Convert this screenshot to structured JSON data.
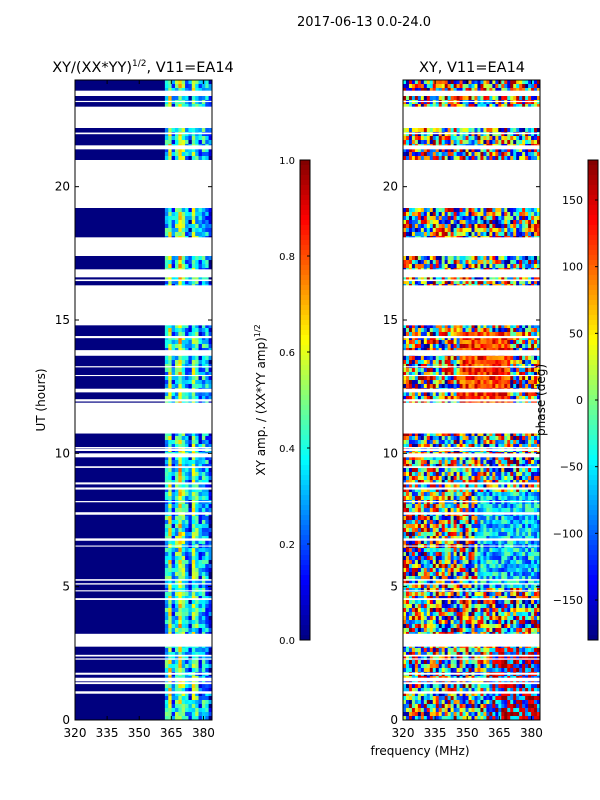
{
  "figure": {
    "suptitle": "2017-06-13 0.0-24.0"
  },
  "colors": {
    "jet": [
      "#00007f",
      "#0000ff",
      "#007fff",
      "#00ffff",
      "#7fff7f",
      "#ffff00",
      "#ff7f00",
      "#ff0000",
      "#7f0000"
    ],
    "amp_background": "#00007f",
    "gap": "#ffffff"
  },
  "chart_data": [
    {
      "type": "heatmap",
      "id": "amp",
      "title_main": "XY/(XX*YY)",
      "title_exp": "1/2",
      "title_suffix": ", V11=EA14",
      "ylabel": "UT (hours)",
      "xlabel": "",
      "xlim": [
        320,
        384
      ],
      "ylim": [
        0,
        24
      ],
      "xticks": [
        "320",
        "335",
        "350",
        "365",
        "380"
      ],
      "xtick_values": [
        320,
        335,
        350,
        365,
        380
      ],
      "yticks": [
        "0",
        "5",
        "10",
        "15",
        "20"
      ],
      "ytick_values": [
        0,
        5,
        10,
        15,
        20
      ],
      "data_gaps_ut": [
        [
          2.75,
          3.2
        ],
        [
          9.85,
          10.0
        ],
        [
          10.8,
          11.9
        ],
        [
          14.8,
          16.3
        ],
        [
          16.6,
          16.9
        ],
        [
          17.4,
          18.1
        ],
        [
          19.2,
          21.0
        ],
        [
          21.4,
          21.55
        ],
        [
          22.2,
          23.0
        ],
        [
          23.4,
          23.6
        ]
      ],
      "band_freq_mhz": [
        362,
        384
      ],
      "colorbar": {
        "label_main": "XY amp. / (XX*YY amp)",
        "label_exp": "1/2",
        "ticks": [
          "0.0",
          "0.2",
          "0.4",
          "0.6",
          "0.8",
          "1.0"
        ],
        "tick_values": [
          0.0,
          0.2,
          0.4,
          0.6,
          0.8,
          1.0
        ],
        "range": [
          0.0,
          1.0
        ]
      }
    },
    {
      "type": "heatmap",
      "id": "phase",
      "title": "XY, V11=EA14",
      "xlabel": "frequency (MHz)",
      "ylabel": "",
      "xlim": [
        320,
        384
      ],
      "ylim": [
        0,
        24
      ],
      "xticks": [
        "320",
        "335",
        "350",
        "365",
        "380"
      ],
      "xtick_values": [
        320,
        335,
        350,
        365,
        380
      ],
      "yticks": [
        "0",
        "5",
        "10",
        "15",
        "20"
      ],
      "ytick_values": [
        0,
        5,
        10,
        15,
        20
      ],
      "data_gaps_ut": [
        [
          2.75,
          3.2
        ],
        [
          9.85,
          10.0
        ],
        [
          10.8,
          11.9
        ],
        [
          14.8,
          16.3
        ],
        [
          16.6,
          16.9
        ],
        [
          17.4,
          18.1
        ],
        [
          19.2,
          21.0
        ],
        [
          21.4,
          21.55
        ],
        [
          22.2,
          23.0
        ],
        [
          23.4,
          23.6
        ]
      ],
      "colorbar": {
        "label": "phase (deg)",
        "ticks": [
          "−150",
          "−100",
          "−50",
          "0",
          "50",
          "100",
          "150"
        ],
        "tick_values": [
          -150,
          -100,
          -50,
          0,
          50,
          100,
          150
        ],
        "range": [
          -180,
          180
        ]
      }
    }
  ]
}
